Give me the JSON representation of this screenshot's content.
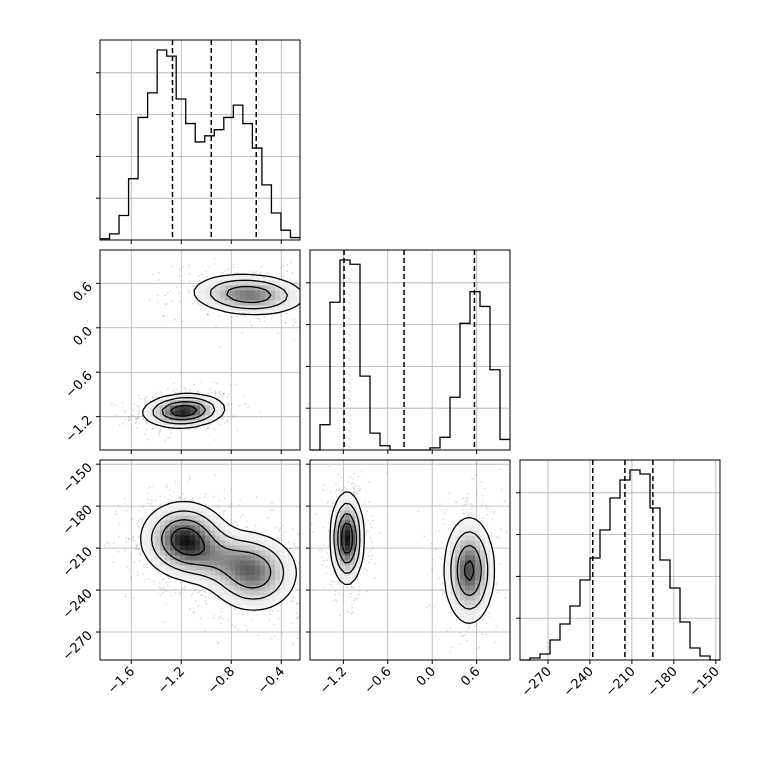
{
  "chart_data": {
    "type": "corner",
    "grid": true,
    "colors": {
      "line": "#000000",
      "grid": "#b0b0b0",
      "scatter": "#808080"
    },
    "params": [
      {
        "name": "p0",
        "range": [
          -1.85,
          -0.25
        ],
        "ticks": [
          -1.6,
          -1.2,
          -0.8,
          -0.4
        ],
        "tick_labels": [
          "−1.6",
          "−1.2",
          "−0.8",
          "−0.4"
        ],
        "quantiles": [
          -1.27,
          -0.96,
          -0.6
        ]
      },
      {
        "name": "p1",
        "range": [
          -1.65,
          1.05
        ],
        "ticks": [
          -1.2,
          -0.6,
          0.0,
          0.6
        ],
        "tick_labels": [
          "−1.2",
          "−0.6",
          "0.0",
          "0.6"
        ],
        "quantiles": [
          -1.19,
          -0.38,
          0.57
        ]
      },
      {
        "name": "p2",
        "range": [
          -290,
          -147
        ],
        "ticks": [
          -270,
          -240,
          -210,
          -180,
          -150
        ],
        "tick_labels": [
          "−270",
          "−240",
          "−210",
          "−180",
          "−150"
        ],
        "quantiles": [
          -238,
          -215,
          -195
        ]
      }
    ],
    "histograms": [
      {
        "param": 0,
        "counts": [
          1,
          5,
          20,
          50,
          100,
          120,
          155,
          150,
          115,
          95,
          80,
          85,
          90,
          100,
          110,
          95,
          75,
          45,
          22,
          8,
          2
        ]
      },
      {
        "param": 1,
        "counts": [
          0,
          12,
          70,
          90,
          88,
          35,
          8,
          2,
          0,
          0,
          0,
          0,
          1,
          6,
          25,
          60,
          75,
          68,
          38,
          5
        ]
      },
      {
        "param": 2,
        "counts": [
          0,
          1,
          3,
          10,
          18,
          27,
          40,
          51,
          65,
          81,
          90,
          95,
          93,
          76,
          50,
          36,
          19,
          6,
          2,
          0
        ]
      }
    ],
    "panels_2d": [
      {
        "x": 0,
        "y": 1,
        "modes": [
          {
            "cx": -1.18,
            "cy": -1.12,
            "sx": 0.16,
            "sy": 0.11,
            "rot": 8,
            "weight": 1.35,
            "darkness": 1.0
          },
          {
            "cx": -0.66,
            "cy": 0.45,
            "sx": 0.23,
            "sy": 0.14,
            "rot": -6,
            "weight": 1.0,
            "darkness": 0.6
          }
        ]
      },
      {
        "x": 0,
        "y": 2,
        "modes": [
          {
            "cx": -1.18,
            "cy": -203,
            "sx": 0.17,
            "sy": 13,
            "rot": 0,
            "weight": 1.3,
            "darkness": 1.0
          },
          {
            "cx": -0.62,
            "cy": -228,
            "sx": 0.18,
            "sy": 14,
            "rot": 0,
            "weight": 1.0,
            "darkness": 0.55
          },
          {
            "cx": -0.92,
            "cy": -217,
            "sx": 0.2,
            "sy": 11,
            "rot": 0,
            "weight": 0.55,
            "darkness": 0.3
          }
        ]
      },
      {
        "x": 1,
        "y": 2,
        "modes": [
          {
            "cx": -1.15,
            "cy": -203,
            "sx": 0.11,
            "sy": 16,
            "rot": 0,
            "weight": 1.2,
            "darkness": 1.0
          },
          {
            "cx": 0.5,
            "cy": -226,
            "sx": 0.17,
            "sy": 19,
            "rot": 0,
            "weight": 1.0,
            "darkness": 0.5
          }
        ]
      }
    ]
  }
}
